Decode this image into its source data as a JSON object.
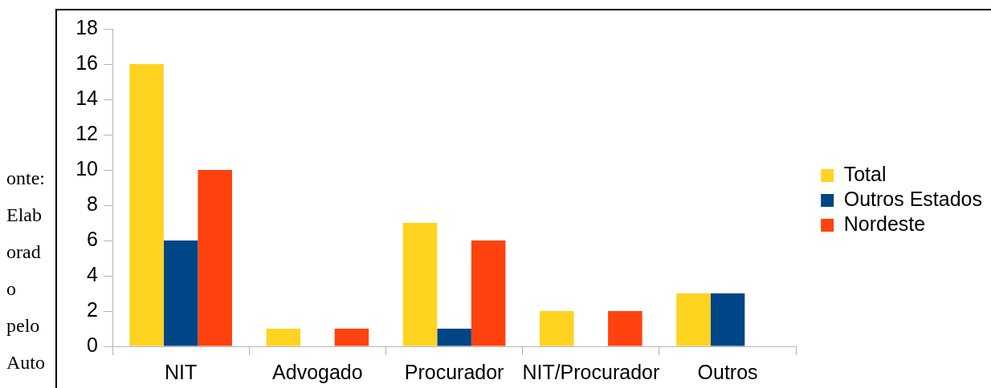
{
  "chart_data": {
    "type": "bar",
    "categories": [
      "NIT",
      "Advogado",
      "Procurador",
      "NIT/Procurador",
      "Outros"
    ],
    "series": [
      {
        "name": "Total",
        "color": "#ffd320",
        "values": [
          16,
          1,
          7,
          2,
          3
        ]
      },
      {
        "name": "Outros Estados",
        "color": "#004586",
        "values": [
          6,
          0,
          1,
          0,
          3
        ]
      },
      {
        "name": "Nordeste",
        "color": "#ff420e",
        "values": [
          10,
          1,
          6,
          2,
          0
        ]
      }
    ],
    "ylim": [
      0,
      18
    ],
    "yticks": [
      0,
      2,
      4,
      6,
      8,
      10,
      12,
      14,
      16,
      18
    ],
    "grid": false,
    "legend": "right",
    "annotations": [
      "onte: Elab orad o pelo Auto"
    ]
  }
}
